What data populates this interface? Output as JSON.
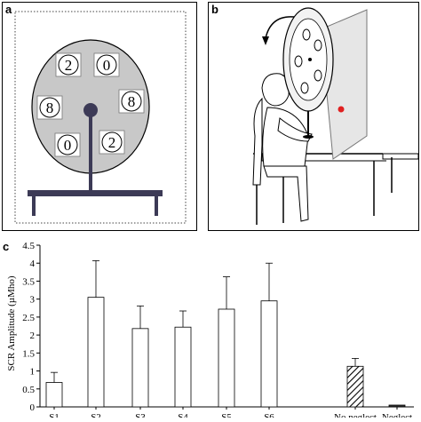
{
  "panels": {
    "a": {
      "label": "a",
      "wheel_digits": [
        "2",
        "0",
        "8",
        "8",
        "0",
        "2"
      ]
    },
    "b": {
      "label": "b"
    },
    "c": {
      "label": "c"
    }
  },
  "colors": {
    "wheel_gray": "#c8c8c8",
    "hub_dark": "#3c3a56",
    "stand_dark": "#3c3a56",
    "target_red": "#e02020"
  },
  "chart_data": {
    "type": "bar",
    "ylabel": "SCR Amplitude (µMho)",
    "ylim": [
      0,
      4.5
    ],
    "yticks": [
      "0",
      "0.5",
      "1",
      "1.5",
      "2",
      "2.5",
      "3",
      "3.5",
      "4",
      "4.5"
    ],
    "categories": [
      "S1",
      "S2",
      "S3",
      "S4",
      "S5",
      "S6",
      "No neglect",
      "Neglect"
    ],
    "values": [
      0.68,
      3.05,
      2.18,
      2.22,
      2.72,
      2.95,
      1.13,
      0.05
    ],
    "errors": [
      0.28,
      1.02,
      0.63,
      0.45,
      0.9,
      1.05,
      0.22,
      0.02
    ],
    "fills": [
      "plain",
      "plain",
      "plain",
      "plain",
      "plain",
      "plain",
      "hatched",
      "dark"
    ],
    "grid": false,
    "legend": "none"
  }
}
